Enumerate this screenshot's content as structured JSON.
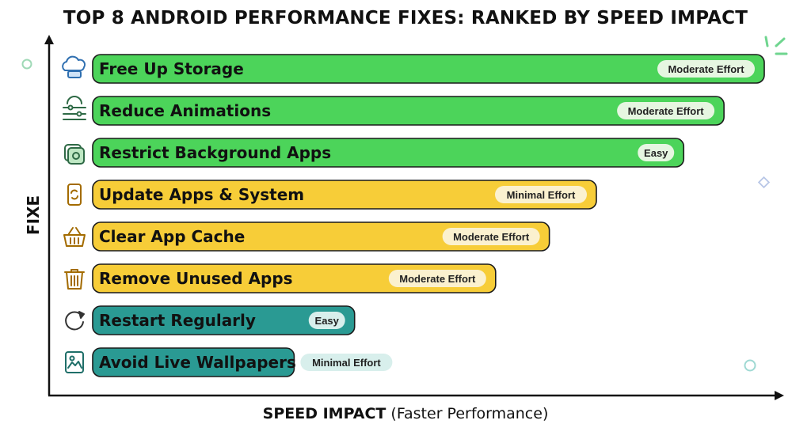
{
  "chart_data": {
    "type": "bar",
    "orientation": "horizontal",
    "title": "TOP 8 ANDROID PERFORMANCE FIXES: RANKED BY SPEED IMPACT",
    "ylabel": "FIXE",
    "xlabel_strong": "SPEED IMPACT",
    "xlabel_rest": " (Faster Performance)",
    "xlim": [
      0,
      100
    ],
    "grid": false,
    "categories": [
      "Free Up Storage",
      "Reduce Animations",
      "Restrict Background Apps",
      "Update Apps & System",
      "Clear App Cache",
      "Remove Unused Apps",
      "Restart Regularly",
      "Avoid Live Wallpapers"
    ],
    "values": [
      100,
      94,
      88,
      75,
      68,
      60,
      39,
      30
    ],
    "effort": [
      "Moderate Effort",
      "Moderate Effort",
      "Easy",
      "Minimal Effort",
      "Moderate Effort",
      "Moderate Effort",
      "Easy",
      "Minimal Effort"
    ],
    "icons": [
      "cloud-storage-icon",
      "animation-sliders-icon",
      "background-apps-icon",
      "phone-update-icon",
      "cache-basket-icon",
      "trash-bin-icon",
      "restart-arrow-icon",
      "wallpaper-image-icon"
    ],
    "colors": [
      "#4cd45a",
      "#4cd45a",
      "#4cd45a",
      "#f7cd38",
      "#f7cd38",
      "#f7cd38",
      "#2a9a93",
      "#2a9a93"
    ],
    "badge_colors": [
      "#e6f6e1",
      "#e6f6e1",
      "#e6f6e1",
      "#fbf1cf",
      "#fbf1cf",
      "#fbf1cf",
      "#d8efec",
      "#d8efec"
    ],
    "icon_colors": [
      "#2f6fb0",
      "#2f6a46",
      "#2f6a46",
      "#a36b00",
      "#a36b00",
      "#a36b00",
      "#333333",
      "#1f6f69"
    ]
  }
}
